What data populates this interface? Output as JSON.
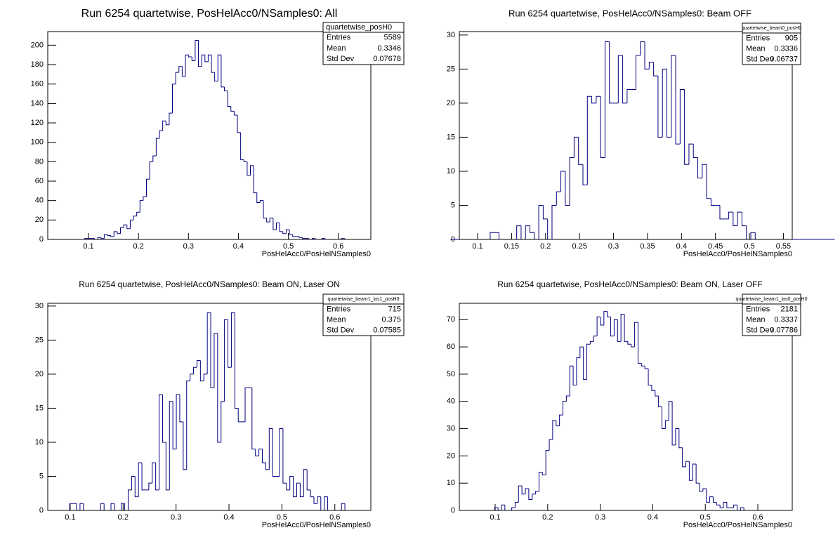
{
  "chart_data": [
    {
      "type": "histogram",
      "title": "Run 6254 quartetwise, PosHelAcc0/NSamples0: All",
      "x_label": "PosHelAcc0/PosHelNSamples0",
      "color": "#000080",
      "bins": [
        0.06,
        0.0665,
        0.073,
        0.0795,
        0.086,
        0.0925,
        0.099,
        0.1055,
        0.112,
        0.1185,
        0.125,
        0.1315,
        0.138,
        0.1445,
        0.151,
        0.1575,
        0.164,
        0.1705,
        0.177,
        0.1835,
        0.19,
        0.1965,
        0.203,
        0.2095,
        0.216,
        0.2225,
        0.229,
        0.2355,
        0.242,
        0.2485,
        0.255,
        0.2615,
        0.268,
        0.2745,
        0.281,
        0.2875,
        0.294,
        0.3005,
        0.307,
        0.3135,
        0.32,
        0.3265,
        0.333,
        0.3395,
        0.346,
        0.3525,
        0.359,
        0.3655,
        0.372,
        0.3785,
        0.385,
        0.3915,
        0.398,
        0.4045,
        0.411,
        0.4175,
        0.424,
        0.4305,
        0.437,
        0.4435,
        0.45,
        0.4565,
        0.463,
        0.4695,
        0.476,
        0.4825,
        0.489,
        0.4955,
        0.502,
        0.5085,
        0.515,
        0.5215,
        0.528,
        0.5345,
        0.541,
        0.5475,
        0.554,
        0.5605,
        0.567,
        0.5735,
        0.58,
        0.5865,
        0.593,
        0.5995,
        0.606,
        0.6125,
        0.619,
        0.6255
      ],
      "values": [
        0,
        0,
        0,
        0,
        0,
        1,
        1,
        1,
        0,
        2,
        1,
        5,
        4,
        3,
        8,
        6,
        12,
        15,
        11,
        20,
        24,
        28,
        40,
        44,
        62,
        80,
        86,
        104,
        112,
        122,
        118,
        130,
        160,
        172,
        178,
        168,
        190,
        188,
        184,
        205,
        178,
        190,
        183,
        190,
        172,
        163,
        190,
        157,
        153,
        137,
        132,
        128,
        110,
        82,
        80,
        66,
        76,
        48,
        38,
        40,
        22,
        18,
        22,
        10,
        17,
        8,
        6,
        10,
        5,
        3,
        3,
        2,
        1,
        1,
        0,
        1,
        0,
        0,
        1,
        0,
        0,
        0,
        0,
        0,
        1,
        0,
        0
      ],
      "xlim": [
        0.0185,
        0.665
      ],
      "xticks": [
        0.1,
        0.2,
        0.3,
        0.4,
        0.5,
        0.6
      ],
      "ylim": [
        0,
        214
      ],
      "yticks": [
        0,
        20,
        40,
        60,
        80,
        100,
        120,
        140,
        160,
        180,
        200
      ],
      "stats": {
        "title": "quartetwise_posH0",
        "labels": [
          "Entries",
          "Mean",
          "Std Dev"
        ],
        "values": [
          5589,
          0.3346,
          0.07678
        ]
      }
    },
    {
      "type": "histogram",
      "title": "Run 6254 quartetwise, PosHelAcc0/NSamples0: Beam OFF",
      "x_label": "PosHelAcc0/PosHelNSamples0",
      "color": "#000080",
      "bins": [
        0.06,
        0.0665,
        0.073,
        0.0795,
        0.086,
        0.0925,
        0.099,
        0.1055,
        0.112,
        0.1185,
        0.125,
        0.1315,
        0.138,
        0.1445,
        0.151,
        0.1575,
        0.164,
        0.1705,
        0.177,
        0.1835,
        0.19,
        0.1965,
        0.203,
        0.2095,
        0.216,
        0.2225,
        0.229,
        0.2355,
        0.242,
        0.2485,
        0.255,
        0.2615,
        0.268,
        0.2745,
        0.281,
        0.2875,
        0.294,
        0.3005,
        0.307,
        0.3135,
        0.32,
        0.3265,
        0.333,
        0.3395,
        0.346,
        0.3525,
        0.359,
        0.3655,
        0.372,
        0.3785,
        0.385,
        0.3915,
        0.398,
        0.4045,
        0.411,
        0.4175,
        0.424,
        0.4305,
        0.437,
        0.4435,
        0.45,
        0.4565,
        0.463,
        0.4695,
        0.476,
        0.4825,
        0.489,
        0.4955,
        0.502,
        0.5085,
        0.515,
        0.5215,
        0.528,
        0.5345,
        0.541,
        0.5475,
        0.554,
        0.5605,
        0.567,
        0.5735,
        0.58,
        0.5865,
        0.593,
        0.5995,
        0.606,
        0.6125,
        0.619,
        0.6255
      ],
      "values": [
        0,
        0,
        0,
        0,
        0,
        0,
        0,
        0,
        0,
        1,
        1,
        0,
        0,
        0,
        0,
        2,
        0,
        2,
        1,
        0,
        5,
        3,
        0,
        5,
        7,
        10,
        5,
        12,
        15,
        11,
        8,
        21,
        20,
        21,
        12,
        29,
        20,
        20,
        27,
        20,
        22,
        22,
        27,
        29,
        25,
        26,
        24,
        15,
        25,
        15,
        27,
        14,
        22,
        11,
        14,
        12,
        9,
        11,
        6,
        5,
        5,
        3,
        3,
        4,
        2,
        4,
        2,
        0,
        1,
        0,
        0,
        0,
        0,
        0,
        0,
        0,
        0,
        0,
        0,
        0,
        0,
        0,
        0,
        0,
        0,
        0,
        0
      ],
      "xlim": [
        0.0731,
        0.563
      ],
      "xticks": [
        0.1,
        0.15,
        0.2,
        0.25,
        0.3,
        0.35,
        0.4,
        0.45,
        0.5,
        0.55
      ],
      "ylim": [
        0,
        30.5
      ],
      "yticks": [
        0,
        5,
        10,
        15,
        20,
        25,
        30
      ],
      "stats": {
        "title": "quartetwise_beam0_posH0",
        "labels": [
          "Entries",
          "Mean",
          "Std Dev"
        ],
        "values": [
          905,
          0.3336,
          0.06737
        ]
      }
    },
    {
      "type": "histogram",
      "title": "Run 6254 quartetwise, PosHelAcc0/NSamples0: Beam ON, Laser ON",
      "x_label": "PosHelAcc0/PosHelNSamples0",
      "color": "#000080",
      "bins": [
        0.06,
        0.0665,
        0.073,
        0.0795,
        0.086,
        0.0925,
        0.099,
        0.1055,
        0.112,
        0.1185,
        0.125,
        0.1315,
        0.138,
        0.1445,
        0.151,
        0.1575,
        0.164,
        0.1705,
        0.177,
        0.1835,
        0.19,
        0.1965,
        0.203,
        0.2095,
        0.216,
        0.2225,
        0.229,
        0.2355,
        0.242,
        0.2485,
        0.255,
        0.2615,
        0.268,
        0.2745,
        0.281,
        0.2875,
        0.294,
        0.3005,
        0.307,
        0.3135,
        0.32,
        0.3265,
        0.333,
        0.3395,
        0.346,
        0.3525,
        0.359,
        0.3655,
        0.372,
        0.3785,
        0.385,
        0.3915,
        0.398,
        0.4045,
        0.411,
        0.4175,
        0.424,
        0.4305,
        0.437,
        0.4435,
        0.45,
        0.4565,
        0.463,
        0.4695,
        0.476,
        0.4825,
        0.489,
        0.4955,
        0.502,
        0.5085,
        0.515,
        0.5215,
        0.528,
        0.5345,
        0.541,
        0.5475,
        0.554,
        0.5605,
        0.567,
        0.5735,
        0.58,
        0.5865,
        0.593,
        0.5995,
        0.606,
        0.6125,
        0.619,
        0.6255
      ],
      "values": [
        0,
        0,
        0,
        0,
        0,
        0,
        1,
        1,
        0,
        1,
        0,
        0,
        0,
        0,
        0,
        1,
        0,
        0,
        1,
        0,
        0,
        1,
        0,
        3,
        5,
        2,
        7,
        3,
        3,
        4,
        7,
        3,
        17,
        10,
        3,
        16,
        9,
        17,
        13,
        6,
        19,
        20,
        21,
        22,
        19,
        20,
        29,
        18,
        26,
        10,
        16,
        28,
        21,
        29,
        15,
        13,
        13,
        18,
        18,
        9,
        8,
        9,
        7,
        6,
        12,
        5,
        5,
        12,
        4,
        3,
        5,
        2,
        4,
        2,
        6,
        3,
        2,
        1,
        2,
        0,
        2,
        0,
        0,
        0,
        0,
        1,
        0
      ],
      "xlim": [
        0.0576,
        0.668
      ],
      "xticks": [
        0.1,
        0.2,
        0.3,
        0.4,
        0.5,
        0.6
      ],
      "ylim": [
        0,
        30.4
      ],
      "yticks": [
        0,
        5,
        10,
        15,
        20,
        25,
        30
      ],
      "stats": {
        "title": "quartetwise_beam1_las1_posH0",
        "labels": [
          "Entries",
          "Mean",
          "Std Dev"
        ],
        "values": [
          715,
          0.375,
          0.07585
        ]
      }
    },
    {
      "type": "histogram",
      "title": "Run 6254 quartetwise, PosHelAcc0/NSamples0: Beam ON, Laser OFF",
      "x_label": "PosHelAcc0/PosHelNSamples0",
      "color": "#000080",
      "bins": [
        0.06,
        0.0665,
        0.073,
        0.0795,
        0.086,
        0.0925,
        0.099,
        0.1055,
        0.112,
        0.1185,
        0.125,
        0.1315,
        0.138,
        0.1445,
        0.151,
        0.1575,
        0.164,
        0.1705,
        0.177,
        0.1835,
        0.19,
        0.1965,
        0.203,
        0.2095,
        0.216,
        0.2225,
        0.229,
        0.2355,
        0.242,
        0.2485,
        0.255,
        0.2615,
        0.268,
        0.2745,
        0.281,
        0.2875,
        0.294,
        0.3005,
        0.307,
        0.3135,
        0.32,
        0.3265,
        0.333,
        0.3395,
        0.346,
        0.3525,
        0.359,
        0.3655,
        0.372,
        0.3785,
        0.385,
        0.3915,
        0.398,
        0.4045,
        0.411,
        0.4175,
        0.424,
        0.4305,
        0.437,
        0.4435,
        0.45,
        0.4565,
        0.463,
        0.4695,
        0.476,
        0.4825,
        0.489,
        0.4955,
        0.502,
        0.5085,
        0.515,
        0.5215,
        0.528,
        0.5345,
        0.541,
        0.5475,
        0.554,
        0.5605,
        0.567,
        0.5735,
        0.58,
        0.5865,
        0.593,
        0.5995,
        0.606,
        0.6125,
        0.619,
        0.6255
      ],
      "values": [
        0,
        0,
        0,
        0,
        0,
        0,
        1,
        0,
        2,
        0,
        0,
        1,
        3,
        9,
        6,
        8,
        4,
        6,
        7,
        14,
        13,
        22,
        26,
        33,
        31,
        35,
        40,
        42,
        53,
        46,
        56,
        60,
        48,
        61,
        62,
        64,
        71,
        68,
        73,
        71,
        64,
        70,
        62,
        72,
        62,
        61,
        60,
        69,
        54,
        53,
        52,
        46,
        44,
        42,
        38,
        30,
        33,
        40,
        24,
        30,
        23,
        16,
        18,
        11,
        17,
        10,
        7,
        8,
        3,
        5,
        3,
        2,
        1,
        3,
        1,
        1,
        2,
        0,
        1,
        0,
        0,
        0,
        0,
        0,
        0,
        0,
        0
      ],
      "xlim": [
        0.0318,
        0.6655
      ],
      "xticks": [
        0.1,
        0.2,
        0.3,
        0.4,
        0.5,
        0.6
      ],
      "ylim": [
        0,
        76
      ],
      "yticks": [
        0,
        10,
        20,
        30,
        40,
        50,
        60,
        70
      ],
      "stats": {
        "title": "quartetwise_beam1_las0_posH0",
        "labels": [
          "Entries",
          "Mean",
          "Std Dev"
        ],
        "values": [
          2181,
          0.3337,
          0.07786
        ]
      }
    }
  ]
}
